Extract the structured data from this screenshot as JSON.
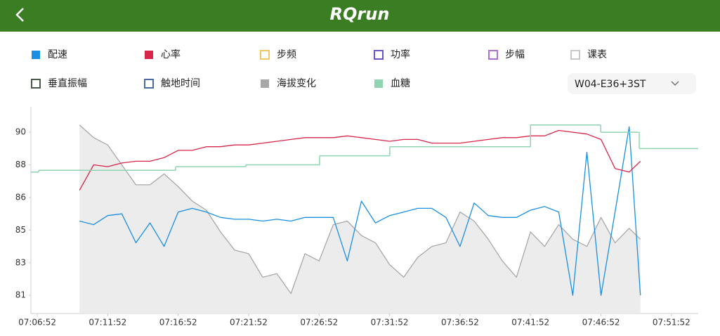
{
  "header": {
    "title": "RQrun"
  },
  "dropdown": {
    "selected": "W04-E36+3ST"
  },
  "chart_data": {
    "type": "line",
    "xlim": [
      "07:06:25",
      "07:53:46"
    ],
    "xticks": [
      "07:06:52",
      "07:11:52",
      "07:16:52",
      "07:21:52",
      "07:26:52",
      "07:31:52",
      "07:36:52",
      "07:41:52",
      "07:46:52",
      "07:51:52"
    ],
    "ylim": [
      80,
      91.4
    ],
    "yticks": [
      81,
      {
        "value": 82.8,
        "label": "83"
      },
      {
        "value": 84.6,
        "label": "85"
      },
      {
        "value": 86.4,
        "label": "86"
      },
      {
        "value": 88.2,
        "label": "88"
      },
      90
    ],
    "x": [
      "07:09:52",
      "07:10:52",
      "07:11:52",
      "07:12:52",
      "07:13:52",
      "07:14:52",
      "07:15:52",
      "07:16:52",
      "07:17:52",
      "07:18:52",
      "07:19:52",
      "07:20:52",
      "07:21:52",
      "07:22:52",
      "07:23:52",
      "07:24:52",
      "07:25:52",
      "07:26:52",
      "07:27:52",
      "07:28:52",
      "07:29:52",
      "07:30:52",
      "07:31:52",
      "07:32:52",
      "07:33:52",
      "07:34:52",
      "07:35:52",
      "07:36:52",
      "07:37:52",
      "07:38:52",
      "07:39:52",
      "07:40:52",
      "07:41:52",
      "07:42:52",
      "07:43:52",
      "07:44:52",
      "07:45:52",
      "07:46:52",
      "07:47:52",
      "07:48:52",
      "07:49:40"
    ],
    "series": [
      {
        "name": "配速",
        "color": "#1a8fe3",
        "checked": true,
        "values": [
          85.1,
          84.9,
          85.4,
          85.5,
          83.9,
          85.0,
          83.7,
          85.6,
          85.8,
          85.6,
          85.3,
          85.2,
          85.2,
          85.1,
          85.2,
          85.1,
          85.3,
          85.3,
          85.3,
          82.9,
          86.2,
          85.0,
          85.4,
          85.6,
          85.8,
          85.8,
          85.3,
          83.7,
          86.1,
          85.4,
          85.3,
          85.3,
          85.7,
          85.9,
          85.6,
          81.0,
          88.9,
          81.0,
          85.6,
          90.3,
          81.0
        ]
      },
      {
        "name": "心率",
        "color": "#d8254a",
        "checked": true,
        "values": [
          86.8,
          88.2,
          88.1,
          88.3,
          88.4,
          88.4,
          88.6,
          89.0,
          89.0,
          89.2,
          89.2,
          89.3,
          89.3,
          89.4,
          89.5,
          89.6,
          89.7,
          89.7,
          89.7,
          89.8,
          89.7,
          89.6,
          89.5,
          89.6,
          89.6,
          89.4,
          89.4,
          89.4,
          89.5,
          89.6,
          89.7,
          89.7,
          89.8,
          89.8,
          90.1,
          90.0,
          89.9,
          89.6,
          88.0,
          87.8,
          88.4
        ]
      },
      {
        "name": "步频",
        "color": "#f2c660",
        "checked": false
      },
      {
        "name": "功率",
        "color": "#6a55c8",
        "checked": false
      },
      {
        "name": "步幅",
        "color": "#b070d0",
        "checked": false
      },
      {
        "name": "课表",
        "color": "#c8c8c8",
        "checked": false
      },
      {
        "name": "垂直振幅",
        "color": "#4a5a48",
        "checked": false
      },
      {
        "name": "触地时间",
        "color": "#4a6aa8",
        "checked": false
      },
      {
        "name": "海拔变化",
        "color": "#a8a8a8",
        "checked": true,
        "area": true,
        "values": [
          90.4,
          89.7,
          89.3,
          88.2,
          87.1,
          87.1,
          87.7,
          87.0,
          86.2,
          85.7,
          84.5,
          83.5,
          83.3,
          82.0,
          82.2,
          81.1,
          83.3,
          82.9,
          84.9,
          85.1,
          84.3,
          83.9,
          82.7,
          82.0,
          83.1,
          83.7,
          83.9,
          85.6,
          85.1,
          84.1,
          82.9,
          82.0,
          84.5,
          83.7,
          84.9,
          84.1,
          83.7,
          85.3,
          83.9,
          84.7,
          84.1
        ]
      },
      {
        "name": "血糖",
        "color": "#8fd4b0",
        "checked": true,
        "step": true,
        "x": [
          "07:06:25",
          "07:06:58",
          "07:16:41",
          "07:21:40",
          "07:26:54",
          "07:31:53",
          "07:41:52",
          "07:46:51",
          "07:49:35"
        ],
        "values": [
          87.8,
          87.9,
          88.1,
          88.2,
          88.7,
          89.2,
          90.4,
          90.0,
          89.1
        ]
      }
    ]
  }
}
